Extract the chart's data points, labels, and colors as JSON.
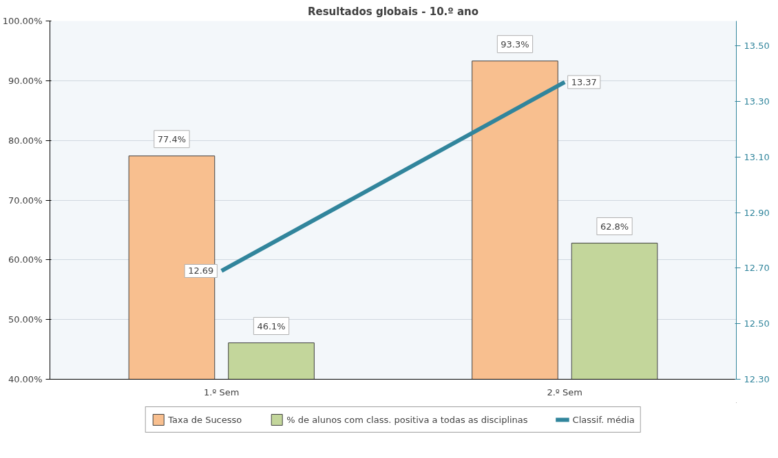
{
  "chart_data": {
    "type": "bar",
    "title": "Resultados globais - 10.º ano",
    "categories": [
      "1.º Sem",
      "2.º Sem"
    ],
    "series": [
      {
        "name": "Taxa de Sucesso",
        "color": "#f8bf8f",
        "values": [
          77.4,
          93.3
        ],
        "value_labels": [
          "77.4%",
          "93.3%"
        ]
      },
      {
        "name": "% de alunos com class. positiva a todas as disciplinas",
        "color": "#c3d69b",
        "values": [
          46.1,
          62.8
        ],
        "value_labels": [
          "46.1%",
          "62.8%"
        ]
      },
      {
        "name": "Classif. média",
        "type": "line",
        "axis": "y2",
        "color": "#31859c",
        "values": [
          12.69,
          13.37
        ],
        "value_labels": [
          "12.69",
          "13.37"
        ]
      }
    ],
    "ylim": [
      40,
      100
    ],
    "yticks": [
      {
        "value": 40,
        "label": "40.00%"
      },
      {
        "value": 50,
        "label": "50.00%"
      },
      {
        "value": 60,
        "label": "60.00%"
      },
      {
        "value": 70,
        "label": "70.00%"
      },
      {
        "value": 80,
        "label": "80.00%"
      },
      {
        "value": 90,
        "label": "90.00%"
      },
      {
        "value": 100,
        "label": "100.00%"
      }
    ],
    "y2lim": [
      12.3,
      13.59
    ],
    "y2ticks": [
      {
        "value": 12.3,
        "label": "12.30"
      },
      {
        "value": 12.5,
        "label": "12.50"
      },
      {
        "value": 12.7,
        "label": "12.70"
      },
      {
        "value": 12.9,
        "label": "12.90"
      },
      {
        "value": 13.1,
        "label": "13.10"
      },
      {
        "value": 13.3,
        "label": "13.30"
      },
      {
        "value": 13.5,
        "label": "13.50"
      }
    ],
    "grid": "y",
    "legend": "bottom",
    "marker": "none",
    "line_style": "solid"
  }
}
